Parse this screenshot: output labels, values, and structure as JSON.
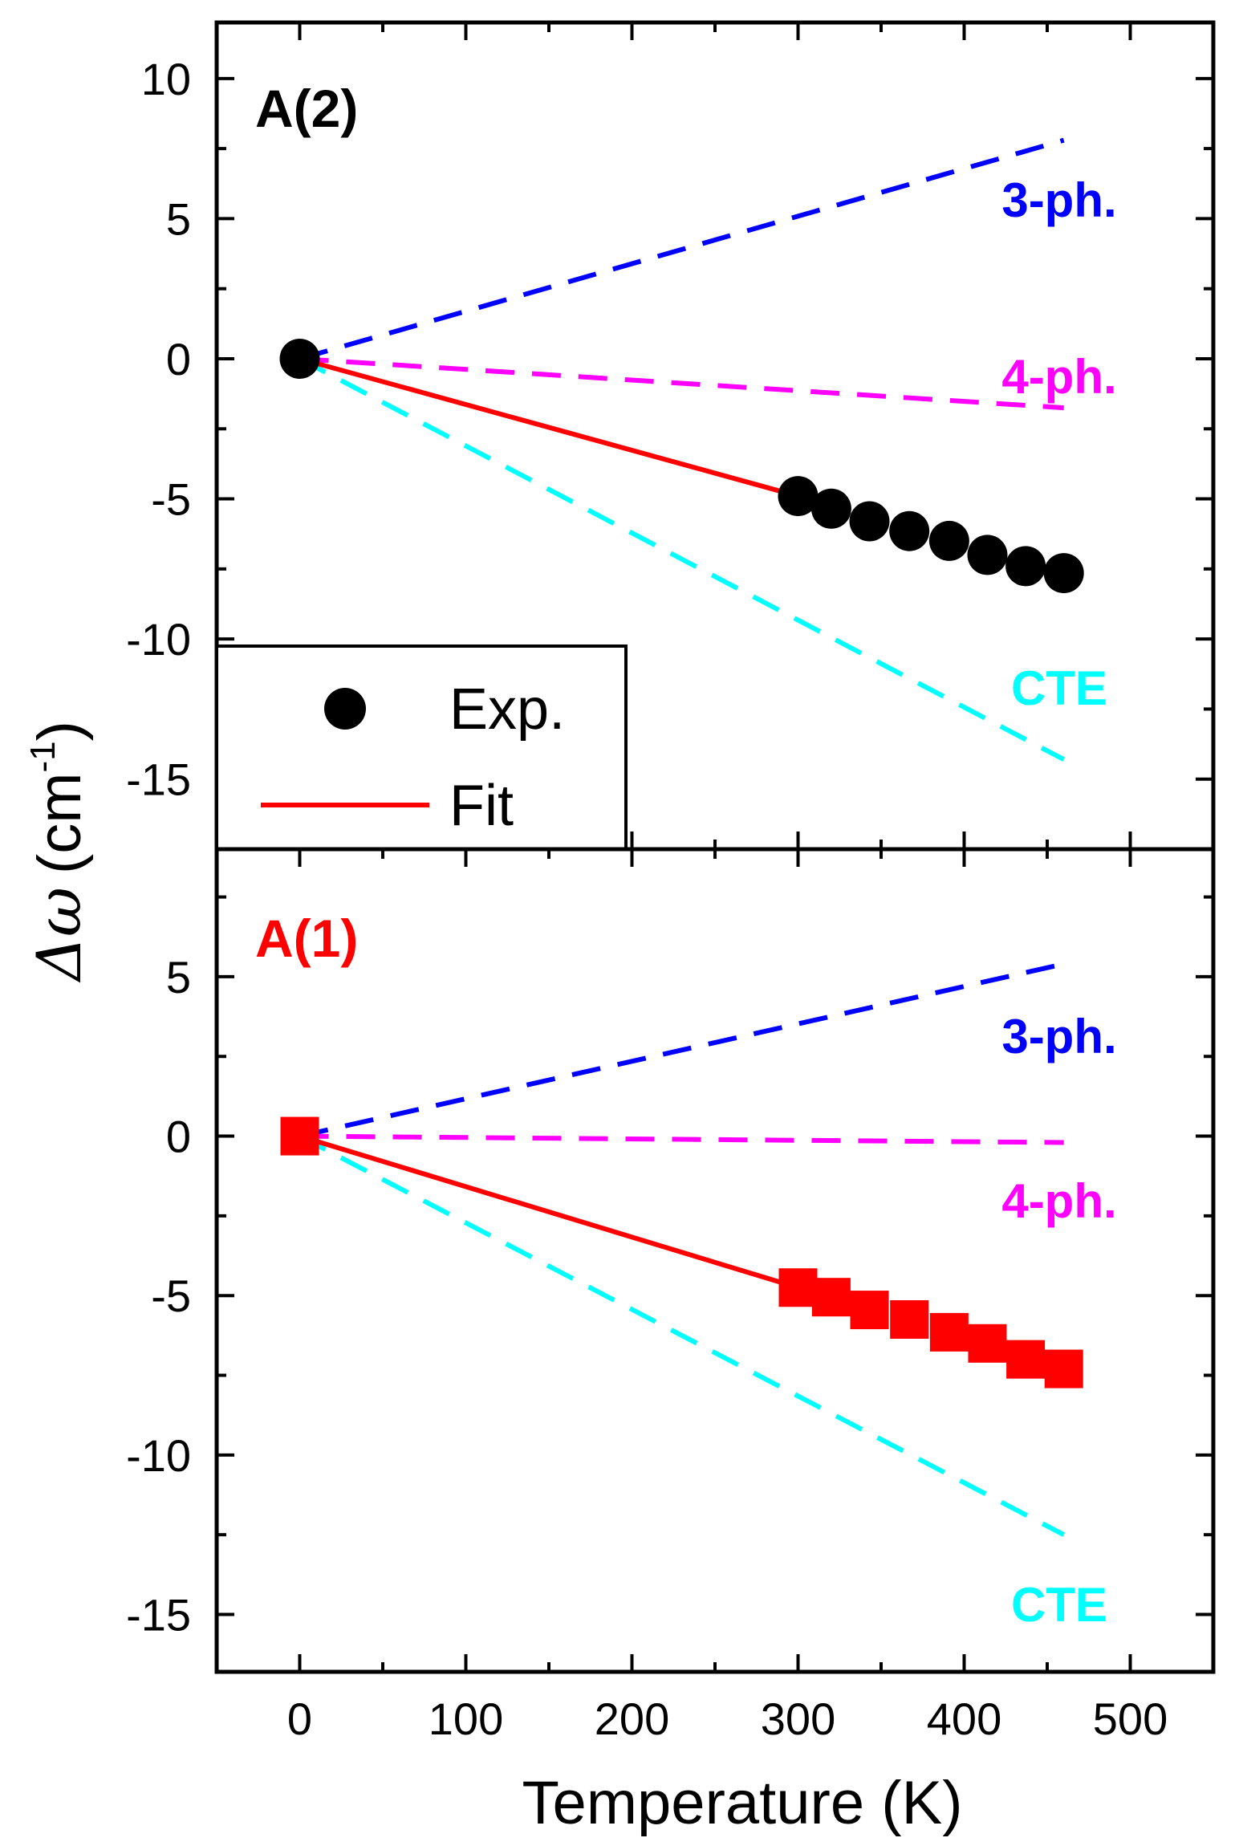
{
  "chart_data": {
    "type": "scatter",
    "xlabel": "Temperature (K)",
    "ylabel_symbol": "Δω",
    "ylabel_unit": "(cm",
    "ylabel_exp": "-1",
    "ylabel_close": ")",
    "xlim": [
      -50,
      550
    ],
    "xticks": [
      0,
      100,
      200,
      300,
      400,
      500
    ],
    "legend": {
      "placement": "bottom-left of top panel",
      "entries": [
        {
          "label": "Exp.",
          "marker": "circle",
          "color": "#000000"
        },
        {
          "label": "Fit",
          "marker": "line",
          "color": "#ff0000"
        }
      ]
    },
    "panels": [
      {
        "id": "top",
        "label": "A(2)",
        "label_color": "#000000",
        "ylim": [
          -17.5,
          12
        ],
        "yticks": [
          10,
          5,
          0,
          -5,
          -10,
          -15
        ],
        "ytick_labels": [
          "10",
          "5",
          "0",
          "-5",
          "-10",
          "-15"
        ],
        "marker": "circle",
        "marker_color": "#000000",
        "exp": {
          "x": [
            0,
            300,
            320,
            343,
            367,
            391,
            414,
            437,
            460
          ],
          "y": [
            0,
            -4.9,
            -5.35,
            -5.8,
            -6.15,
            -6.5,
            -7.0,
            -7.4,
            -7.65
          ]
        },
        "fit": {
          "x": [
            0,
            300
          ],
          "y": [
            0,
            -4.9
          ],
          "color": "#ff0000"
        },
        "components": [
          {
            "name": "3-ph.",
            "color": "#0000ff",
            "x": [
              0,
              460
            ],
            "y": [
              0,
              7.8
            ]
          },
          {
            "name": "4-ph.",
            "color": "#ff00ff",
            "x": [
              0,
              460
            ],
            "y": [
              0,
              -1.75
            ]
          },
          {
            "name": "CTE",
            "color": "#00ffff",
            "x": [
              0,
              460
            ],
            "y": [
              0,
              -14.3
            ]
          }
        ]
      },
      {
        "id": "bottom",
        "label": "A(1)",
        "label_color": "#ff0000",
        "ylim": [
          -16.8,
          9
        ],
        "yticks": [
          5,
          0,
          -5,
          -10,
          -15
        ],
        "ytick_labels": [
          "5",
          "0",
          "-5",
          "-10",
          "-15"
        ],
        "marker": "square",
        "marker_color": "#ff0000",
        "exp": {
          "x": [
            0,
            300,
            320,
            343,
            367,
            391,
            414,
            437,
            460
          ],
          "y": [
            0,
            -4.75,
            -5.05,
            -5.45,
            -5.75,
            -6.15,
            -6.5,
            -7.0,
            -7.3
          ]
        },
        "fit": {
          "x": [
            0,
            300
          ],
          "y": [
            0,
            -4.75
          ],
          "color": "#ff0000"
        },
        "components": [
          {
            "name": "3-ph.",
            "color": "#0000ff",
            "x": [
              0,
              460
            ],
            "y": [
              0,
              5.4
            ]
          },
          {
            "name": "4-ph.",
            "color": "#ff00ff",
            "x": [
              0,
              460
            ],
            "y": [
              0,
              -0.2
            ]
          },
          {
            "name": "CTE",
            "color": "#00ffff",
            "x": [
              0,
              460
            ],
            "y": [
              0,
              -12.5
            ]
          }
        ]
      }
    ]
  }
}
